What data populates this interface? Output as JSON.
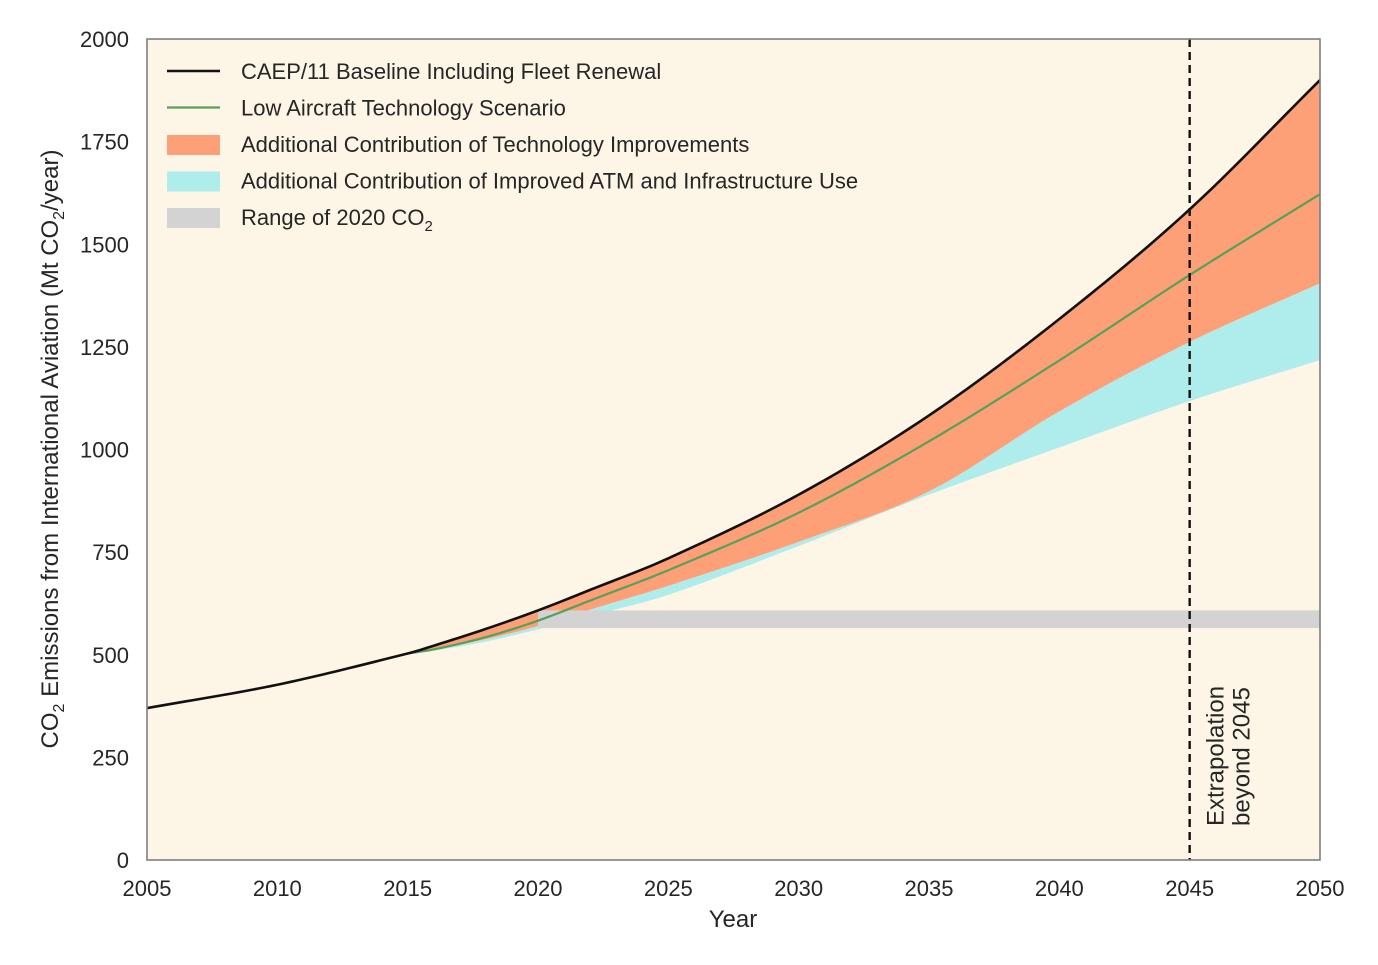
{
  "chart_data": {
    "type": "area",
    "xlabel": "Year",
    "ylabel": {
      "prefix": "CO",
      "sub": "2",
      "suffix": " Emissions from International Aviation (Mt CO",
      "sub2": "2",
      "suffix2": "/year)"
    },
    "xlim": [
      2005,
      2050
    ],
    "ylim": [
      0,
      2000
    ],
    "xticks": [
      2005,
      2010,
      2015,
      2020,
      2025,
      2030,
      2035,
      2040,
      2045,
      2050
    ],
    "yticks": [
      0,
      250,
      500,
      750,
      1000,
      1250,
      1500,
      1750,
      2000
    ],
    "grid": false,
    "legend_position": "top-left",
    "background_color": "#fdf5e6",
    "x": [
      2005,
      2010,
      2015,
      2016,
      2018,
      2020,
      2022,
      2025,
      2030,
      2035,
      2040,
      2045,
      2050
    ],
    "series": [
      {
        "key": "baseline",
        "name": "CAEP/11 Baseline Including Fleet Renewal",
        "kind": "line",
        "color": "#111111",
        "values": [
          370,
          427,
          503,
          522,
          563,
          608,
          658,
          735,
          890,
          1083,
          1318,
          1585,
          1900
        ]
      },
      {
        "key": "low_tech",
        "name": "Low Aircraft Technology Scenario",
        "kind": "line",
        "color": "#55a05a",
        "values": [
          null,
          null,
          503,
          513,
          543,
          583,
          632,
          706,
          846,
          1020,
          1217,
          1425,
          1622
        ]
      },
      {
        "key": "tech_improvements",
        "name": "Additional Contribution of Technology Improvements",
        "kind": "band",
        "color": "#fea077",
        "upper": "baseline",
        "lower_values": [
          null,
          null,
          503,
          512,
          538,
          570,
          610,
          668,
          775,
          898,
          1093,
          1262,
          1405
        ]
      },
      {
        "key": "atm_infrastructure",
        "name": "Additional Contribution of Improved ATM and Infrastructure Use",
        "kind": "band",
        "color": "#afecec",
        "upper": "tech_improvements",
        "lower_values": [
          null,
          null,
          503,
          510,
          532,
          562,
          595,
          646,
          765,
          890,
          1005,
          1118,
          1218
        ]
      },
      {
        "key": "range_2020",
        "name": "Range of 2020 CO",
        "name_sub": "2",
        "kind": "hband",
        "color": "#d3d3d3",
        "x_from": 2020,
        "x_to": 2050,
        "y_from": 565,
        "y_to": 608
      }
    ],
    "vline": {
      "x": 2045,
      "style": "dashed",
      "color": "#111111",
      "label_line1": "Extrapolation",
      "label_line2": "beyond 2045"
    }
  }
}
